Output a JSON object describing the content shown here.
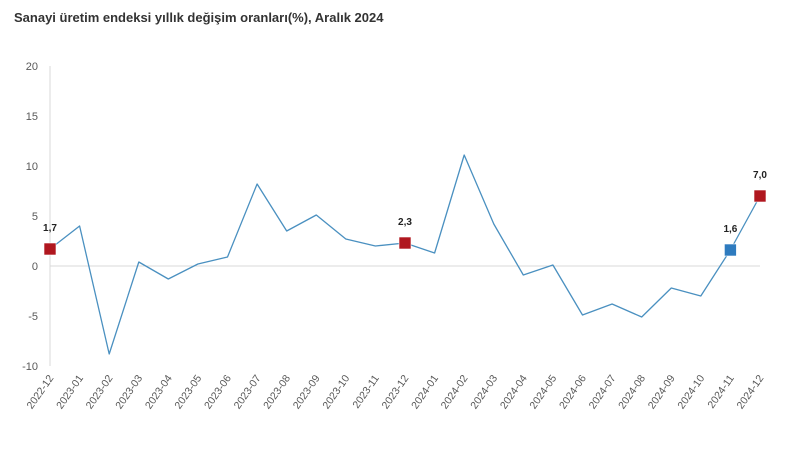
{
  "chart_data": {
    "type": "line",
    "title": "Sanayi üretim endeksi yıllık değişim oranları(%), Aralık 2024",
    "xlabel": "",
    "ylabel": "",
    "ylim": [
      -10,
      20
    ],
    "yticks": [
      20,
      15,
      10,
      5,
      0,
      -5,
      -10
    ],
    "grid": false,
    "legend": "none",
    "categories": [
      "2022-12",
      "2023-01",
      "2023-02",
      "2023-03",
      "2023-04",
      "2023-05",
      "2023-06",
      "2023-07",
      "2023-08",
      "2023-09",
      "2023-10",
      "2023-11",
      "2023-12",
      "2024-01",
      "2024-02",
      "2024-03",
      "2024-04",
      "2024-05",
      "2024-06",
      "2024-07",
      "2024-08",
      "2024-09",
      "2024-10",
      "2024-11",
      "2024-12"
    ],
    "series": [
      {
        "values": [
          1.7,
          4.0,
          -8.8,
          0.4,
          -1.3,
          0.2,
          0.9,
          8.2,
          3.5,
          5.1,
          2.7,
          2.0,
          2.3,
          1.3,
          11.1,
          4.2,
          -0.9,
          0.1,
          -4.9,
          -3.8,
          -5.1,
          -2.2,
          -3.0,
          1.6,
          7.0
        ],
        "color": "#4a90c0"
      }
    ],
    "highlights": [
      {
        "index": 0,
        "label": "1,7",
        "color": "#b0171f"
      },
      {
        "index": 12,
        "label": "2,3",
        "color": "#b0171f"
      },
      {
        "index": 23,
        "label": "1,6",
        "color": "#2e7bbf"
      },
      {
        "index": 24,
        "label": "7,0",
        "color": "#b0171f"
      }
    ]
  }
}
